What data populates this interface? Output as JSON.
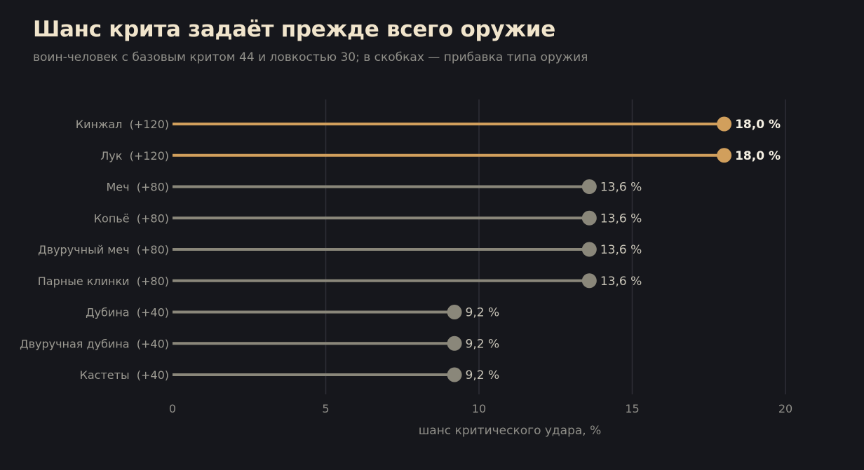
{
  "chart_data": {
    "type": "lollipop",
    "title": "Шанс крита задаёт прежде всего оружие",
    "subtitle": "воин-человек с базовым критом 44 и ловкостью 30; в скобках — прибавка типа оружия",
    "xlabel": "шанс критического удара, %",
    "xlim": [
      0,
      20
    ],
    "xticks": [
      0,
      5,
      10,
      15,
      20
    ],
    "grid": "vertical",
    "colors": {
      "highlight": "#d19f5c",
      "normal": "#8a877a",
      "background": "#16171c",
      "grid": "#2e2f36"
    },
    "categories": [
      "Кинжал  (+120)",
      "Лук  (+120)",
      "Меч  (+80)",
      "Копьё  (+80)",
      "Двуручный меч  (+80)",
      "Парные клинки  (+80)",
      "Дубина  (+40)",
      "Двуручная дубина  (+40)",
      "Кастеты  (+40)"
    ],
    "values": [
      18.0,
      18.0,
      13.6,
      13.6,
      13.6,
      13.6,
      9.2,
      9.2,
      9.2
    ],
    "value_labels": [
      "18,0 %",
      "18,0 %",
      "13,6 %",
      "13,6 %",
      "13,6 %",
      "13,6 %",
      "9,2 %",
      "9,2 %",
      "9,2 %"
    ],
    "highlighted": [
      true,
      true,
      false,
      false,
      false,
      false,
      false,
      false,
      false
    ]
  }
}
